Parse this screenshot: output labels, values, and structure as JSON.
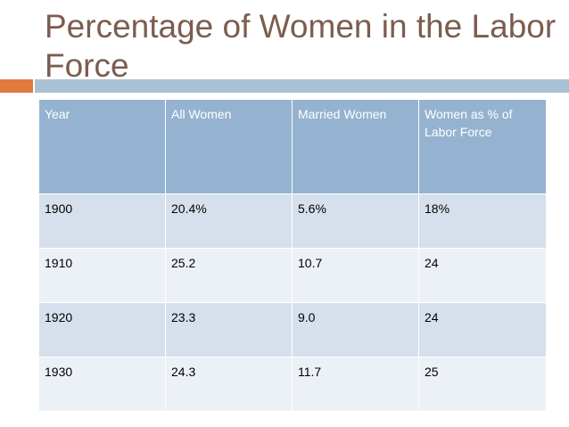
{
  "slide": {
    "title": "Percentage of Women in the Labor Force"
  },
  "table": {
    "headers": [
      "Year",
      "All Women",
      "Married Women",
      "Women as % of Labor Force"
    ],
    "rows": [
      [
        "1900",
        "20.4%",
        "5.6%",
        "18%"
      ],
      [
        "1910",
        "25.2",
        "10.7",
        "24"
      ],
      [
        "1920",
        "23.3",
        "9.0",
        "24"
      ],
      [
        "1930",
        "24.3",
        "11.7",
        "25"
      ]
    ]
  },
  "colors": {
    "title": "#7b5d4f",
    "accent": "#e07a3f",
    "rule": "#a9c1d3",
    "header_bg": "#95b3d0",
    "row_odd_bg": "#d6e0ec",
    "row_even_bg": "#ecf1f7"
  }
}
